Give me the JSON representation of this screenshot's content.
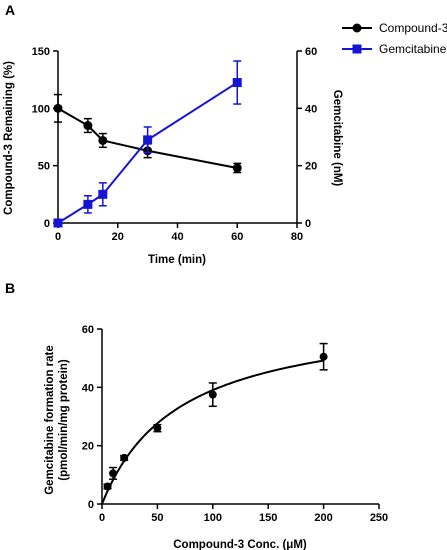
{
  "chart_data": [
    {
      "panel": "A",
      "type": "line",
      "xlabel": "Time (min)",
      "ylabel_left": "Compound-3 Remaining (%)",
      "ylabel_right": "Gemcitabine (nM)",
      "xlim": [
        0,
        80
      ],
      "ylim_left": [
        0,
        150
      ],
      "ylim_right": [
        0,
        60
      ],
      "x_ticks": [
        0,
        20,
        40,
        60,
        80
      ],
      "y_ticks_left": [
        0,
        50,
        100,
        150
      ],
      "y_ticks_right": [
        0,
        20,
        40,
        60
      ],
      "grid": false,
      "legend_position": "top-right",
      "series": [
        {
          "name": "Compound-3",
          "axis": "left",
          "color": "#000000",
          "marker": "circle",
          "x": [
            0,
            10,
            15,
            30,
            60
          ],
          "y": [
            100,
            85,
            72,
            63,
            48
          ],
          "err": [
            12,
            6,
            6,
            6,
            4
          ]
        },
        {
          "name": "Gemcitabine",
          "axis": "right",
          "color": "#1515d6",
          "marker": "square",
          "x": [
            0,
            10,
            15,
            30,
            60
          ],
          "y": [
            0,
            6.5,
            10,
            29,
            49
          ],
          "err": [
            0,
            3,
            4,
            4.5,
            7.5
          ]
        }
      ]
    },
    {
      "panel": "B",
      "type": "scatter",
      "xlabel": "Compound-3 Conc. (μM)",
      "ylabel": "Gemcitabine formation rate (pmol/min/mg protein)",
      "ylabel_lines": [
        "Gemcitabine formation rate",
        "(pmol/min/mg protein)"
      ],
      "xlim": [
        0,
        250
      ],
      "ylim": [
        0,
        60
      ],
      "x_ticks": [
        0,
        50,
        100,
        150,
        200,
        250
      ],
      "y_ticks": [
        0,
        20,
        40,
        60
      ],
      "grid": false,
      "fit": "michaelis-menten",
      "color": "#000000",
      "x": [
        5,
        10,
        20,
        50,
        100,
        200
      ],
      "y": [
        6,
        10.5,
        15.8,
        26,
        37.5,
        50.5
      ],
      "err": [
        0.8,
        2.0,
        0.8,
        1.2,
        4.0,
        4.5
      ]
    }
  ]
}
